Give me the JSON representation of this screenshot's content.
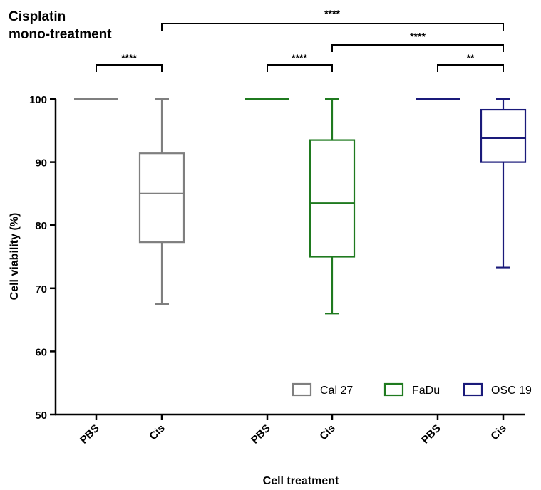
{
  "chart_data": {
    "type": "box",
    "title": [
      "Cisplatin",
      "mono-treatment"
    ],
    "x_label": "Cell treatment",
    "y_label": "Cell viability (%)",
    "ylim": [
      50,
      100
    ],
    "yticks": [
      50,
      60,
      70,
      80,
      90,
      100
    ],
    "legend": "lower right",
    "series": [
      {
        "name": "Cal 27",
        "color": "#7f7f7f",
        "categories": [
          "PBS",
          "Cis"
        ],
        "min": [
          100,
          67.5
        ],
        "q1": [
          100,
          77.3
        ],
        "median": [
          100,
          85.0
        ],
        "q3": [
          100,
          91.4
        ],
        "max": [
          100,
          100
        ]
      },
      {
        "name": "FaDu",
        "color": "#1f7a1f",
        "categories": [
          "PBS",
          "Cis"
        ],
        "min": [
          100,
          66.0
        ],
        "q1": [
          100,
          75.0
        ],
        "median": [
          100,
          83.5
        ],
        "q3": [
          100,
          93.5
        ],
        "max": [
          100,
          100
        ]
      },
      {
        "name": "OSC 19",
        "color": "#1a1a7a",
        "categories": [
          "PBS",
          "Cis"
        ],
        "min": [
          100,
          73.3
        ],
        "q1": [
          100,
          90.0
        ],
        "median": [
          100,
          93.8
        ],
        "q3": [
          100,
          98.3
        ],
        "max": [
          100,
          100
        ]
      }
    ],
    "annotations": [
      "****",
      "****",
      "****",
      "****",
      "****",
      "**"
    ]
  }
}
